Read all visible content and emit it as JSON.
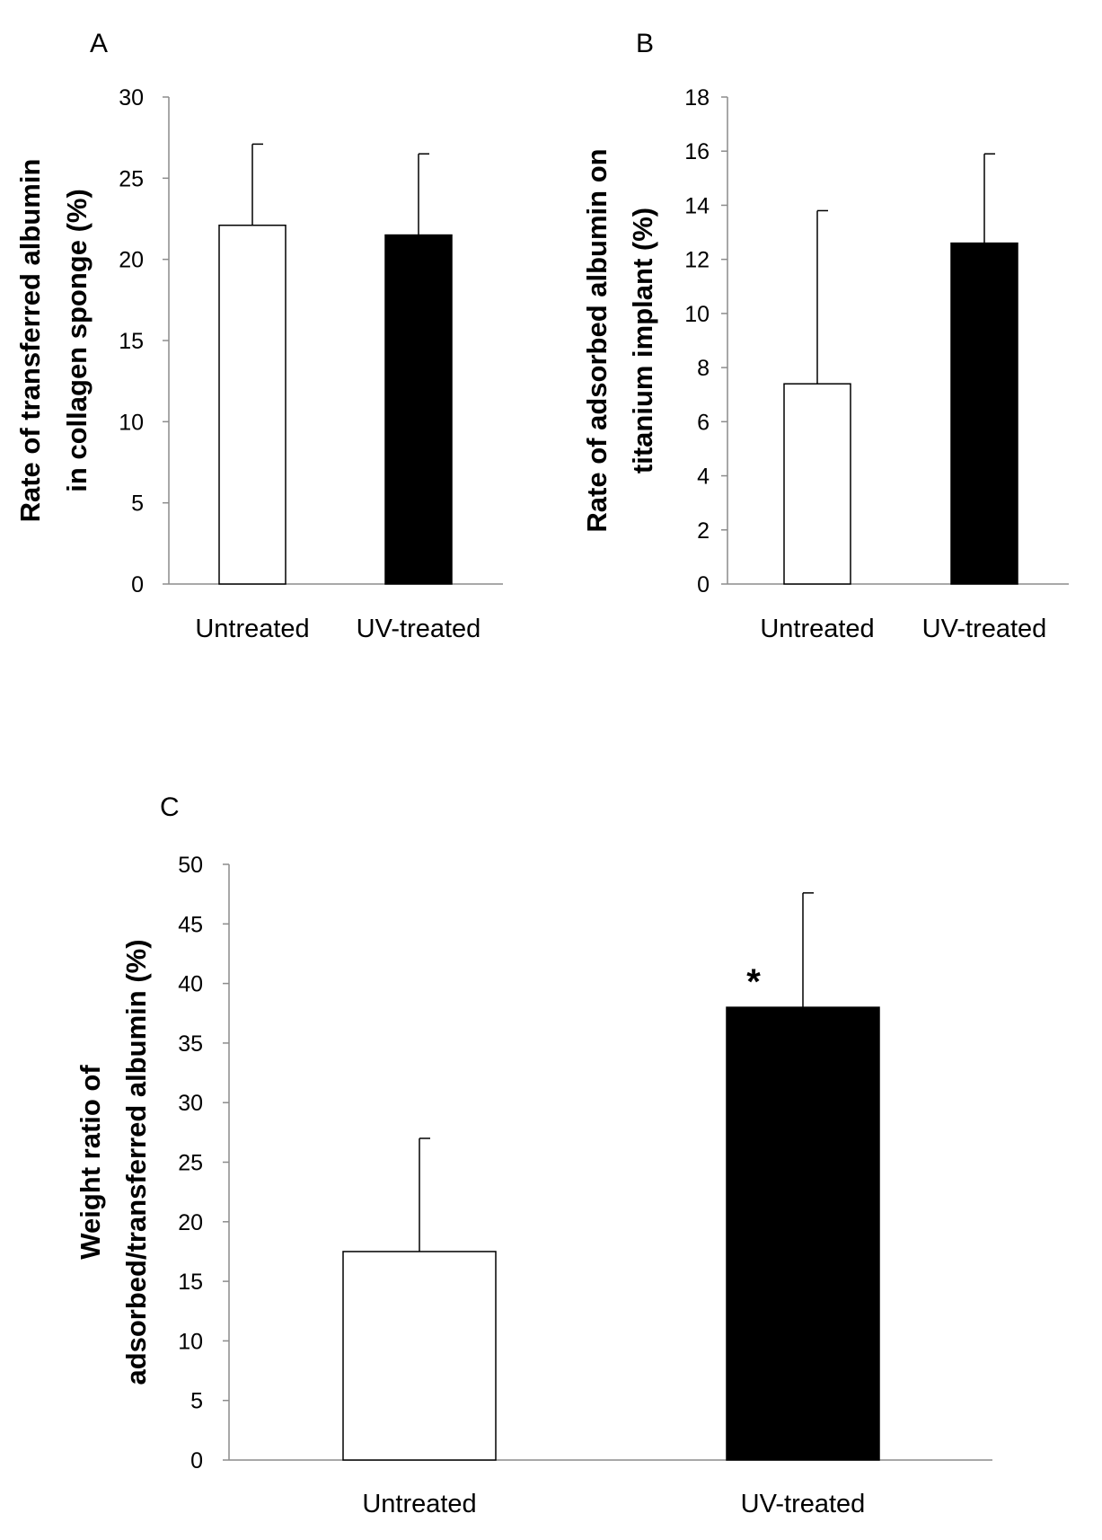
{
  "chart_data": [
    {
      "type": "bar",
      "panel": "A",
      "categories": [
        "Untreated",
        "UV-treated"
      ],
      "values": [
        22.1,
        21.5
      ],
      "errors": [
        5.0,
        5.0
      ],
      "bar_colors": [
        "#ffffff",
        "#000000"
      ],
      "ylabel_lines": [
        "Rate of transferred albumin",
        "in collagen sponge (%)"
      ],
      "ylim": [
        0,
        30
      ],
      "yticks": [
        0,
        5,
        10,
        15,
        20,
        25,
        30
      ],
      "grid": false,
      "annotations": []
    },
    {
      "type": "bar",
      "panel": "B",
      "categories": [
        "Untreated",
        "UV-treated"
      ],
      "values": [
        7.4,
        12.6
      ],
      "errors": [
        6.4,
        3.3
      ],
      "bar_colors": [
        "#ffffff",
        "#000000"
      ],
      "ylabel_lines": [
        "Rate of adsorbed albumin on",
        "titanium implant  (%)"
      ],
      "ylim": [
        0,
        18
      ],
      "yticks": [
        0,
        2,
        4,
        6,
        8,
        10,
        12,
        14,
        16,
        18
      ],
      "grid": false,
      "annotations": []
    },
    {
      "type": "bar",
      "panel": "C",
      "categories": [
        "Untreated",
        "UV-treated"
      ],
      "values": [
        17.5,
        38.0
      ],
      "errors": [
        9.5,
        9.6
      ],
      "bar_colors": [
        "#ffffff",
        "#000000"
      ],
      "ylabel_lines": [
        "Weight ratio of",
        "adsorbed/transferred albumin  (%)"
      ],
      "ylim": [
        0,
        50
      ],
      "yticks": [
        0,
        5,
        10,
        15,
        20,
        25,
        30,
        35,
        40,
        45,
        50
      ],
      "grid": false,
      "annotations": [
        {
          "category": "UV-treated",
          "text": "*"
        }
      ]
    }
  ]
}
